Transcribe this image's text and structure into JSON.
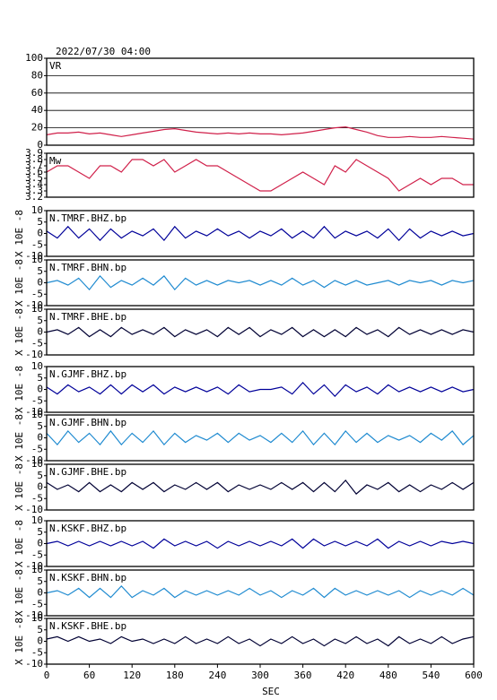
{
  "chart_data": [
    {
      "type": "line",
      "title": "2022/07/30 04:00",
      "label": "VR",
      "color": "#d0204a",
      "grid": true,
      "x": [
        0,
        15,
        30,
        45,
        60,
        75,
        90,
        105,
        120,
        135,
        150,
        165,
        180,
        195,
        210,
        225,
        240,
        255,
        270,
        285,
        300,
        315,
        330,
        345,
        360,
        375,
        390,
        405,
        420,
        435,
        450,
        465,
        480,
        495,
        510,
        525,
        540,
        555,
        570,
        585,
        600
      ],
      "values": [
        12,
        14,
        14,
        15,
        13,
        14,
        12,
        10,
        12,
        14,
        16,
        18,
        19,
        17,
        15,
        14,
        13,
        14,
        13,
        14,
        13,
        13,
        12,
        13,
        14,
        16,
        18,
        20,
        21,
        18,
        15,
        11,
        9,
        9,
        10,
        9,
        9,
        10,
        9,
        8,
        7
      ],
      "xlim": [
        0,
        600
      ],
      "ylim": [
        0,
        100
      ],
      "yticks": [
        0,
        20,
        40,
        60,
        80,
        100
      ]
    },
    {
      "type": "line",
      "label": "Mw",
      "color": "#d0204a",
      "x": [
        0,
        15,
        30,
        45,
        60,
        75,
        90,
        105,
        120,
        135,
        150,
        165,
        180,
        195,
        210,
        225,
        240,
        255,
        270,
        285,
        300,
        315,
        330,
        345,
        360,
        375,
        390,
        405,
        420,
        435,
        450,
        465,
        480,
        495,
        510,
        525,
        540,
        555,
        570,
        585,
        600
      ],
      "values": [
        3.6,
        3.7,
        3.7,
        3.6,
        3.5,
        3.7,
        3.7,
        3.6,
        3.8,
        3.8,
        3.7,
        3.8,
        3.6,
        3.7,
        3.8,
        3.7,
        3.7,
        3.6,
        3.5,
        3.4,
        3.3,
        3.3,
        3.4,
        3.5,
        3.6,
        3.5,
        3.4,
        3.7,
        3.6,
        3.8,
        3.7,
        3.6,
        3.5,
        3.3,
        3.4,
        3.5,
        3.4,
        3.5,
        3.5,
        3.4,
        3.4
      ],
      "xlim": [
        0,
        600
      ],
      "ylim": [
        3.2,
        3.9
      ],
      "yticks": [
        3.2,
        3.3,
        3.4,
        3.5,
        3.6,
        3.7,
        3.8,
        3.9
      ]
    },
    {
      "type": "line",
      "label": "N.TMRF.BHZ.bp",
      "ylabel": "X 10E -8",
      "color": "#000099",
      "x": [
        0,
        15,
        30,
        45,
        60,
        75,
        90,
        105,
        120,
        135,
        150,
        165,
        180,
        195,
        210,
        225,
        240,
        255,
        270,
        285,
        300,
        315,
        330,
        345,
        360,
        375,
        390,
        405,
        420,
        435,
        450,
        465,
        480,
        495,
        510,
        525,
        540,
        555,
        570,
        585,
        600
      ],
      "values": [
        1,
        -2,
        3,
        -2,
        2,
        -3,
        2,
        -2,
        1,
        -1,
        2,
        -3,
        3,
        -2,
        1,
        -1,
        2,
        -1,
        1,
        -2,
        1,
        -1,
        2,
        -2,
        1,
        -2,
        3,
        -2,
        1,
        -1,
        1,
        -2,
        2,
        -3,
        2,
        -2,
        1,
        -1,
        1,
        -1,
        0
      ],
      "xlim": [
        0,
        600
      ],
      "ylim": [
        -10,
        10
      ],
      "yticks": [
        -10,
        -5,
        0,
        5,
        10
      ]
    },
    {
      "type": "line",
      "label": "N.TMRF.BHN.bp",
      "ylabel": "X 10E -8",
      "color": "#1e8ad0",
      "x": [
        0,
        15,
        30,
        45,
        60,
        75,
        90,
        105,
        120,
        135,
        150,
        165,
        180,
        195,
        210,
        225,
        240,
        255,
        270,
        285,
        300,
        315,
        330,
        345,
        360,
        375,
        390,
        405,
        420,
        435,
        450,
        465,
        480,
        495,
        510,
        525,
        540,
        555,
        570,
        585,
        600
      ],
      "values": [
        0,
        1,
        -1,
        2,
        -3,
        3,
        -2,
        1,
        -1,
        2,
        -1,
        3,
        -3,
        2,
        -1,
        1,
        -1,
        1,
        0,
        1,
        -1,
        1,
        -1,
        2,
        -1,
        1,
        -2,
        1,
        -1,
        1,
        -1,
        0,
        1,
        -1,
        1,
        0,
        1,
        -1,
        1,
        0,
        1
      ],
      "xlim": [
        0,
        600
      ],
      "ylim": [
        -10,
        10
      ],
      "yticks": [
        -10,
        -5,
        0,
        5,
        10
      ]
    },
    {
      "type": "line",
      "label": "N.TMRF.BHE.bp",
      "ylabel": "X 10E -8",
      "color": "#000033",
      "x": [
        0,
        15,
        30,
        45,
        60,
        75,
        90,
        105,
        120,
        135,
        150,
        165,
        180,
        195,
        210,
        225,
        240,
        255,
        270,
        285,
        300,
        315,
        330,
        345,
        360,
        375,
        390,
        405,
        420,
        435,
        450,
        465,
        480,
        495,
        510,
        525,
        540,
        555,
        570,
        585,
        600
      ],
      "values": [
        0,
        1,
        -1,
        2,
        -2,
        1,
        -2,
        2,
        -1,
        1,
        -1,
        2,
        -2,
        1,
        -1,
        1,
        -2,
        2,
        -1,
        2,
        -2,
        1,
        -1,
        2,
        -2,
        1,
        -2,
        1,
        -2,
        2,
        -1,
        1,
        -2,
        2,
        -1,
        1,
        -1,
        1,
        -1,
        1,
        0
      ],
      "xlim": [
        0,
        600
      ],
      "ylim": [
        -10,
        10
      ],
      "yticks": [
        -10,
        -5,
        0,
        5,
        10
      ]
    },
    {
      "type": "line",
      "label": "N.GJMF.BHZ.bp",
      "ylabel": "X 10E -8",
      "color": "#000099",
      "x": [
        0,
        15,
        30,
        45,
        60,
        75,
        90,
        105,
        120,
        135,
        150,
        165,
        180,
        195,
        210,
        225,
        240,
        255,
        270,
        285,
        300,
        315,
        330,
        345,
        360,
        375,
        390,
        405,
        420,
        435,
        450,
        465,
        480,
        495,
        510,
        525,
        540,
        555,
        570,
        585,
        600
      ],
      "values": [
        1,
        -2,
        2,
        -1,
        1,
        -2,
        2,
        -2,
        2,
        -1,
        2,
        -2,
        1,
        -1,
        1,
        -1,
        1,
        -2,
        2,
        -1,
        0,
        0,
        1,
        -2,
        3,
        -2,
        2,
        -3,
        2,
        -1,
        1,
        -2,
        2,
        -1,
        1,
        -1,
        1,
        -1,
        1,
        -1,
        0
      ],
      "xlim": [
        0,
        600
      ],
      "ylim": [
        -10,
        10
      ],
      "yticks": [
        -10,
        -5,
        0,
        5,
        10
      ]
    },
    {
      "type": "line",
      "label": "N.GJMF.BHN.bp",
      "ylabel": "X 10E -8",
      "color": "#1e8ad0",
      "x": [
        0,
        15,
        30,
        45,
        60,
        75,
        90,
        105,
        120,
        135,
        150,
        165,
        180,
        195,
        210,
        225,
        240,
        255,
        270,
        285,
        300,
        315,
        330,
        345,
        360,
        375,
        390,
        405,
        420,
        435,
        450,
        465,
        480,
        495,
        510,
        525,
        540,
        555,
        570,
        585,
        600
      ],
      "values": [
        2,
        -3,
        3,
        -2,
        2,
        -3,
        3,
        -3,
        2,
        -2,
        3,
        -3,
        2,
        -2,
        1,
        -1,
        2,
        -2,
        2,
        -1,
        1,
        -2,
        2,
        -2,
        3,
        -3,
        2,
        -3,
        3,
        -2,
        2,
        -2,
        1,
        -1,
        1,
        -2,
        2,
        -1,
        3,
        -3,
        1
      ],
      "xlim": [
        0,
        600
      ],
      "ylim": [
        -10,
        10
      ],
      "yticks": [
        -10,
        -5,
        0,
        5,
        10
      ]
    },
    {
      "type": "line",
      "label": "N.GJMF.BHE.bp",
      "ylabel": "X 10E -8",
      "color": "#000033",
      "x": [
        0,
        15,
        30,
        45,
        60,
        75,
        90,
        105,
        120,
        135,
        150,
        165,
        180,
        195,
        210,
        225,
        240,
        255,
        270,
        285,
        300,
        315,
        330,
        345,
        360,
        375,
        390,
        405,
        420,
        435,
        450,
        465,
        480,
        495,
        510,
        525,
        540,
        555,
        570,
        585,
        600
      ],
      "values": [
        2,
        -1,
        1,
        -2,
        2,
        -2,
        1,
        -2,
        2,
        -1,
        2,
        -2,
        1,
        -1,
        2,
        -1,
        2,
        -2,
        1,
        -1,
        1,
        -1,
        2,
        -1,
        2,
        -2,
        2,
        -2,
        3,
        -3,
        1,
        -1,
        2,
        -2,
        1,
        -2,
        1,
        -1,
        2,
        -1,
        2
      ],
      "xlim": [
        0,
        600
      ],
      "ylim": [
        -10,
        10
      ],
      "yticks": [
        -10,
        -5,
        0,
        5,
        10
      ]
    },
    {
      "type": "line",
      "label": "N.KSKF.BHZ.bp",
      "ylabel": "X 10E -8",
      "color": "#000099",
      "x": [
        0,
        15,
        30,
        45,
        60,
        75,
        90,
        105,
        120,
        135,
        150,
        165,
        180,
        195,
        210,
        225,
        240,
        255,
        270,
        285,
        300,
        315,
        330,
        345,
        360,
        375,
        390,
        405,
        420,
        435,
        450,
        465,
        480,
        495,
        510,
        525,
        540,
        555,
        570,
        585,
        600
      ],
      "values": [
        0,
        1,
        -1,
        1,
        -1,
        1,
        -1,
        1,
        -1,
        1,
        -2,
        2,
        -1,
        1,
        -1,
        1,
        -2,
        1,
        -1,
        1,
        -1,
        1,
        -1,
        2,
        -2,
        2,
        -1,
        1,
        -1,
        1,
        -1,
        2,
        -2,
        1,
        -1,
        1,
        -1,
        1,
        0,
        1,
        0
      ],
      "xlim": [
        0,
        600
      ],
      "ylim": [
        -10,
        10
      ],
      "yticks": [
        -10,
        -5,
        0,
        5,
        10
      ]
    },
    {
      "type": "line",
      "label": "N.KSKF.BHN.bp",
      "ylabel": "X 10E -8",
      "color": "#1e8ad0",
      "x": [
        0,
        15,
        30,
        45,
        60,
        75,
        90,
        105,
        120,
        135,
        150,
        165,
        180,
        195,
        210,
        225,
        240,
        255,
        270,
        285,
        300,
        315,
        330,
        345,
        360,
        375,
        390,
        405,
        420,
        435,
        450,
        465,
        480,
        495,
        510,
        525,
        540,
        555,
        570,
        585,
        600
      ],
      "values": [
        0,
        1,
        -1,
        2,
        -2,
        2,
        -2,
        3,
        -2,
        1,
        -1,
        2,
        -2,
        1,
        -1,
        1,
        -1,
        1,
        -1,
        2,
        -1,
        1,
        -2,
        1,
        -1,
        2,
        -2,
        2,
        -1,
        1,
        -1,
        1,
        -1,
        1,
        -2,
        1,
        -1,
        1,
        -1,
        2,
        -1
      ],
      "xlim": [
        0,
        600
      ],
      "ylim": [
        -10,
        10
      ],
      "yticks": [
        -10,
        -5,
        0,
        5,
        10
      ]
    },
    {
      "type": "line",
      "label": "N.KSKF.BHE.bp",
      "ylabel": "X 10E -8",
      "color": "#000033",
      "xlabel": "SEC",
      "x": [
        0,
        15,
        30,
        45,
        60,
        75,
        90,
        105,
        120,
        135,
        150,
        165,
        180,
        195,
        210,
        225,
        240,
        255,
        270,
        285,
        300,
        315,
        330,
        345,
        360,
        375,
        390,
        405,
        420,
        435,
        450,
        465,
        480,
        495,
        510,
        525,
        540,
        555,
        570,
        585,
        600
      ],
      "values": [
        1,
        2,
        0,
        2,
        0,
        1,
        -1,
        2,
        0,
        1,
        -1,
        1,
        -1,
        2,
        -1,
        1,
        -1,
        2,
        -1,
        1,
        -2,
        1,
        -1,
        2,
        -1,
        1,
        -2,
        1,
        -1,
        2,
        -1,
        1,
        -2,
        2,
        -1,
        1,
        -1,
        2,
        -1,
        1,
        2
      ],
      "xlim": [
        0,
        600
      ],
      "xticks": [
        0,
        60,
        120,
        180,
        240,
        300,
        360,
        420,
        480,
        540,
        600
      ],
      "ylim": [
        -10,
        10
      ],
      "yticks": [
        -10,
        -5,
        0,
        5,
        10
      ]
    }
  ]
}
